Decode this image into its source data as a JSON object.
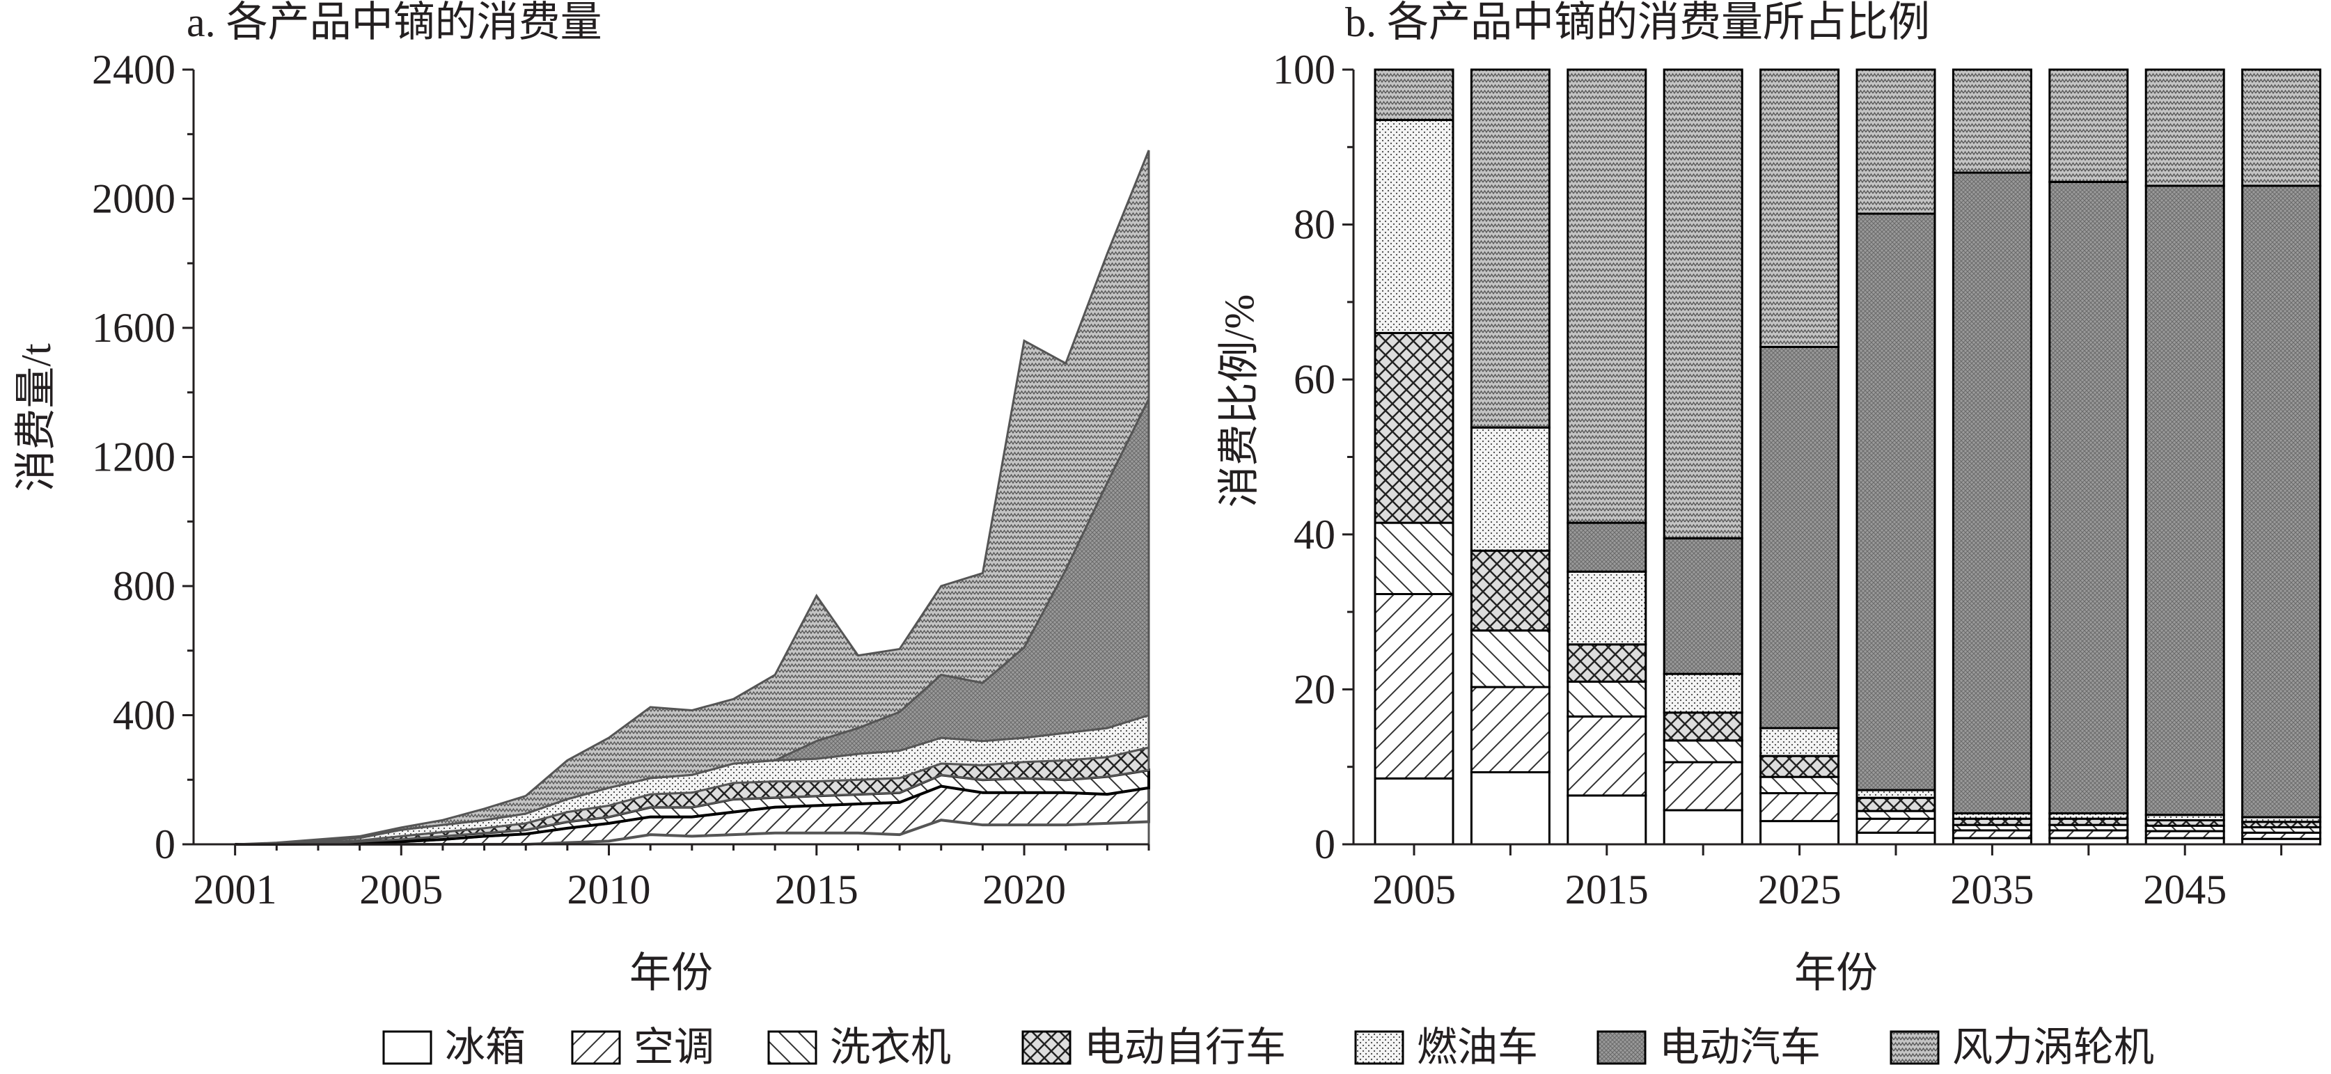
{
  "legend": [
    "冰箱",
    "空调",
    "洗衣机",
    "电动自行车",
    "燃油车",
    "电动汽车",
    "风力涡轮机"
  ],
  "colors": {
    "axis": "#231f20",
    "fill_dark": "#8a8a8a",
    "fill_mid": "#b5b5b5",
    "fill_light": "#e6e6e6"
  },
  "chart_data": [
    {
      "type": "area",
      "title": "a. 各产品中镝的消费量",
      "xlabel": "年份",
      "ylabel": "消费量/t",
      "xlim": [
        2000,
        2023
      ],
      "ylim": [
        0,
        2400
      ],
      "yticks": [
        0,
        400,
        800,
        1200,
        1600,
        2000,
        2400
      ],
      "xticks": [
        2001,
        2005,
        2010,
        2015,
        2020
      ],
      "stacked": true,
      "x": [
        2001,
        2002,
        2003,
        2004,
        2005,
        2006,
        2007,
        2008,
        2009,
        2010,
        2011,
        2012,
        2013,
        2014,
        2015,
        2016,
        2017,
        2018,
        2019,
        2020,
        2021,
        2022,
        2023
      ],
      "series": [
        {
          "name": "冰箱",
          "values": [
            0,
            0,
            0,
            0,
            0,
            0,
            0,
            0,
            5,
            10,
            30,
            25,
            30,
            35,
            35,
            35,
            30,
            75,
            60,
            60,
            60,
            65,
            70
          ]
        },
        {
          "name": "空调",
          "values": [
            0,
            0,
            1,
            4,
            8,
            15,
            25,
            32,
            45,
            55,
            55,
            60,
            70,
            80,
            85,
            90,
            100,
            105,
            100,
            100,
            100,
            90,
            105
          ]
        },
        {
          "name": "洗衣机",
          "values": [
            0,
            0,
            2,
            4,
            7,
            10,
            10,
            13,
            20,
            20,
            30,
            30,
            40,
            30,
            30,
            30,
            30,
            35,
            40,
            45,
            40,
            55,
            55
          ]
        },
        {
          "name": "电动自行车",
          "values": [
            0,
            0,
            2,
            4,
            10,
            13,
            15,
            20,
            30,
            35,
            40,
            45,
            50,
            50,
            45,
            45,
            45,
            35,
            45,
            50,
            60,
            60,
            70
          ]
        },
        {
          "name": "燃油车",
          "values": [
            0,
            3,
            5,
            8,
            20,
            22,
            25,
            30,
            40,
            55,
            50,
            55,
            60,
            65,
            70,
            80,
            85,
            80,
            75,
            75,
            85,
            90,
            100
          ]
        },
        {
          "name": "电动汽车",
          "values": [
            0,
            0,
            0,
            0,
            0,
            0,
            0,
            0,
            0,
            0,
            0,
            0,
            0,
            0,
            55,
            80,
            120,
            195,
            180,
            280,
            505,
            760,
            980
          ]
        },
        {
          "name": "风力涡轮机",
          "values": [
            0,
            2,
            5,
            5,
            7,
            15,
            35,
            55,
            120,
            155,
            220,
            200,
            200,
            265,
            450,
            225,
            195,
            275,
            340,
            950,
            640,
            710,
            770
          ]
        }
      ]
    },
    {
      "type": "bar",
      "stacked": true,
      "title": "b. 各产品中镝的消费量所占比例",
      "xlabel": "年份",
      "ylabel": "消费比例/%",
      "ylim": [
        0,
        100
      ],
      "yticks": [
        0,
        20,
        40,
        60,
        80,
        100
      ],
      "categories": [
        2005,
        2010,
        2015,
        2020,
        2025,
        2030,
        2035,
        2040,
        2045,
        2050
      ],
      "xtick_labels": [
        "2005",
        "2015",
        "2025",
        "2035",
        "2045"
      ],
      "series": [
        {
          "name": "冰箱",
          "values": [
            8.5,
            9.3,
            6.3,
            4.4,
            3.0,
            1.5,
            0.8,
            0.8,
            0.8,
            0.7
          ]
        },
        {
          "name": "空调",
          "values": [
            23.8,
            11.0,
            10.2,
            6.2,
            3.6,
            1.8,
            1.0,
            1.0,
            0.9,
            0.8
          ]
        },
        {
          "name": "洗衣机",
          "values": [
            9.2,
            7.3,
            4.5,
            2.8,
            2.1,
            1.0,
            0.7,
            0.7,
            0.7,
            0.7
          ]
        },
        {
          "name": "电动自行车",
          "values": [
            24.5,
            10.3,
            4.8,
            3.6,
            2.7,
            1.7,
            0.8,
            0.8,
            0.7,
            0.7
          ]
        },
        {
          "name": "燃油车",
          "values": [
            27.5,
            15.9,
            9.4,
            5.0,
            3.6,
            1.0,
            0.7,
            0.7,
            0.7,
            0.6
          ]
        },
        {
          "name": "电动汽车",
          "values": [
            0,
            0,
            6.3,
            17.5,
            49.2,
            74.4,
            82.7,
            81.5,
            81.2,
            81.5
          ]
        },
        {
          "name": "风力涡轮机",
          "values": [
            6.5,
            46.2,
            58.5,
            60.5,
            35.8,
            18.6,
            13.3,
            14.5,
            15.0,
            15.0
          ]
        }
      ]
    }
  ]
}
